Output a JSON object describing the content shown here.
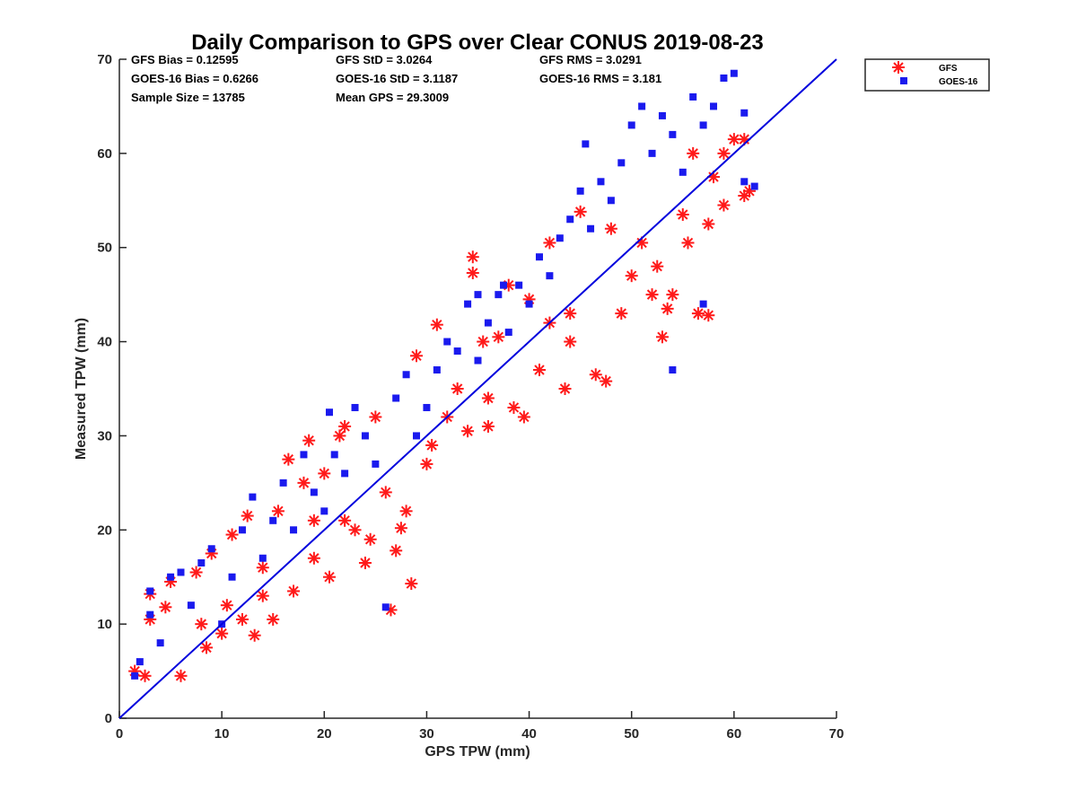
{
  "chart_data": {
    "type": "scatter",
    "title": "Daily Comparison to GPS over Clear CONUS 2019-08-23",
    "xlabel": "GPS TPW (mm)",
    "ylabel": "Measured TPW (mm)",
    "xlim": [
      0,
      70
    ],
    "ylim": [
      0,
      70
    ],
    "xticks": [
      "0",
      "10",
      "20",
      "30",
      "40",
      "50",
      "60",
      "70"
    ],
    "yticks": [
      "0",
      "10",
      "20",
      "30",
      "40",
      "50",
      "60",
      "70"
    ],
    "grid": false,
    "legend_position": "outside-top-right",
    "stats": [
      "GFS Bias = 0.12595",
      "GFS StD = 3.0264",
      "GFS RMS = 3.0291",
      "GOES-16 Bias = 0.6266",
      "GOES-16 StD = 3.1187",
      "GOES-16 RMS = 3.181",
      "Sample Size = 13785",
      "Mean GPS = 29.3009"
    ],
    "reference_line": {
      "name": "1:1 line",
      "x": [
        0,
        70
      ],
      "y": [
        0,
        70
      ],
      "color": "#0000dd"
    },
    "series": [
      {
        "name": "GFS",
        "marker": "asterisk",
        "color": "#ff1a1a",
        "points": [
          [
            1.5,
            5
          ],
          [
            2.5,
            4.5
          ],
          [
            3,
            10.5
          ],
          [
            3,
            13.2
          ],
          [
            4.5,
            11.8
          ],
          [
            5,
            14.5
          ],
          [
            6,
            4.5
          ],
          [
            7.5,
            15.5
          ],
          [
            8.5,
            7.5
          ],
          [
            9,
            17.5
          ],
          [
            10,
            9
          ],
          [
            10.5,
            12
          ],
          [
            11,
            19.5
          ],
          [
            12,
            10.5
          ],
          [
            12.5,
            21.5
          ],
          [
            13.2,
            8.8
          ],
          [
            14,
            13
          ],
          [
            15,
            10.5
          ],
          [
            15.5,
            22
          ],
          [
            16.5,
            27.5
          ],
          [
            17,
            13.5
          ],
          [
            18,
            25
          ],
          [
            18.5,
            29.5
          ],
          [
            19,
            17
          ],
          [
            20,
            26
          ],
          [
            20.5,
            15
          ],
          [
            21.5,
            30
          ],
          [
            22,
            31
          ],
          [
            23,
            20
          ],
          [
            24,
            16.5
          ],
          [
            24.5,
            19
          ],
          [
            25,
            32
          ],
          [
            26.5,
            11.5
          ],
          [
            27,
            17.8
          ],
          [
            27.5,
            20.2
          ],
          [
            28,
            22
          ],
          [
            28.5,
            14.3
          ],
          [
            29,
            38.5
          ],
          [
            30.5,
            29
          ],
          [
            31,
            41.8
          ],
          [
            32,
            32
          ],
          [
            33,
            35
          ],
          [
            34,
            30.5
          ],
          [
            34.5,
            49
          ],
          [
            34.5,
            47.3
          ],
          [
            35.5,
            40
          ],
          [
            36,
            31
          ],
          [
            37,
            40.5
          ],
          [
            38,
            46
          ],
          [
            38.5,
            33
          ],
          [
            39.5,
            32
          ],
          [
            40,
            44.5
          ],
          [
            41,
            37
          ],
          [
            42,
            50.5
          ],
          [
            43.5,
            35
          ],
          [
            44,
            40
          ],
          [
            45,
            53.8
          ],
          [
            46.5,
            36.5
          ],
          [
            47.5,
            35.8
          ],
          [
            48,
            52
          ],
          [
            49,
            43
          ],
          [
            50,
            47
          ],
          [
            51,
            50.5
          ],
          [
            52,
            45
          ],
          [
            52.5,
            48
          ],
          [
            53,
            40.5
          ],
          [
            53.5,
            43.5
          ],
          [
            54,
            45
          ],
          [
            55,
            53.5
          ],
          [
            55.5,
            50.5
          ],
          [
            56,
            60
          ],
          [
            56.5,
            43
          ],
          [
            57.5,
            42.8
          ],
          [
            57.5,
            52.5
          ],
          [
            58,
            57.5
          ],
          [
            59,
            54.5
          ],
          [
            59,
            60
          ],
          [
            60,
            61.5
          ],
          [
            61,
            61.5
          ],
          [
            61,
            55.5
          ],
          [
            61.5,
            56
          ],
          [
            22,
            21
          ],
          [
            26,
            24
          ],
          [
            30,
            27
          ],
          [
            36,
            34
          ],
          [
            44,
            43
          ],
          [
            8,
            10
          ],
          [
            14,
            16
          ],
          [
            19,
            21
          ],
          [
            42,
            42
          ]
        ]
      },
      {
        "name": "GOES-16",
        "marker": "square",
        "color": "#1a1aee",
        "points": [
          [
            1.5,
            4.5
          ],
          [
            2,
            6
          ],
          [
            3,
            11
          ],
          [
            3,
            13.5
          ],
          [
            4,
            8
          ],
          [
            5,
            15
          ],
          [
            6,
            15.5
          ],
          [
            7,
            12
          ],
          [
            8,
            16.5
          ],
          [
            9,
            18
          ],
          [
            10,
            10
          ],
          [
            11,
            15
          ],
          [
            12,
            20
          ],
          [
            13,
            23.5
          ],
          [
            14,
            17
          ],
          [
            15,
            21
          ],
          [
            16,
            25
          ],
          [
            17,
            20
          ],
          [
            18,
            28
          ],
          [
            19,
            24
          ],
          [
            20,
            22
          ],
          [
            20.5,
            32.5
          ],
          [
            21,
            28
          ],
          [
            22,
            26
          ],
          [
            23,
            33
          ],
          [
            24,
            30
          ],
          [
            25,
            27
          ],
          [
            26,
            11.8
          ],
          [
            27,
            34
          ],
          [
            28,
            36.5
          ],
          [
            29,
            30
          ],
          [
            30,
            33
          ],
          [
            31,
            37
          ],
          [
            32,
            40
          ],
          [
            33,
            39
          ],
          [
            34,
            44
          ],
          [
            35,
            38
          ],
          [
            36,
            42
          ],
          [
            37,
            45
          ],
          [
            38,
            41
          ],
          [
            39,
            46
          ],
          [
            40,
            44
          ],
          [
            41,
            49
          ],
          [
            42,
            47
          ],
          [
            43,
            51
          ],
          [
            44,
            53
          ],
          [
            45,
            56
          ],
          [
            46,
            52
          ],
          [
            47,
            57
          ],
          [
            48,
            55
          ],
          [
            49,
            59
          ],
          [
            50,
            63
          ],
          [
            51,
            65
          ],
          [
            52,
            60
          ],
          [
            53,
            64
          ],
          [
            54,
            62
          ],
          [
            55,
            58
          ],
          [
            56,
            66
          ],
          [
            57,
            63
          ],
          [
            58,
            65
          ],
          [
            59,
            68
          ],
          [
            60,
            68.5
          ],
          [
            61,
            64.3
          ],
          [
            61,
            57
          ],
          [
            62,
            56.5
          ],
          [
            45.5,
            61
          ],
          [
            54,
            37
          ],
          [
            57,
            44
          ],
          [
            35,
            45
          ],
          [
            37.5,
            46
          ]
        ]
      }
    ]
  }
}
